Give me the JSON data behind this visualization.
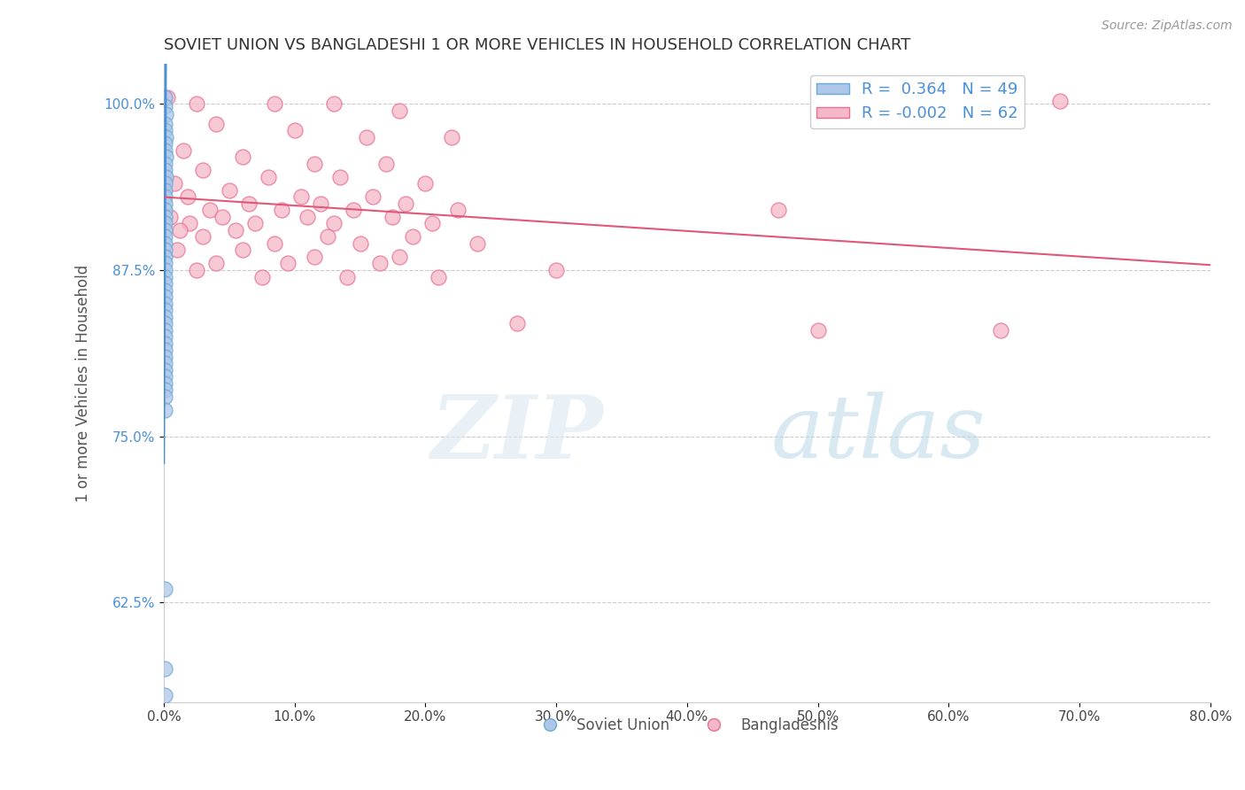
{
  "title": "SOVIET UNION VS BANGLADESHI 1 OR MORE VEHICLES IN HOUSEHOLD CORRELATION CHART",
  "source_text": "Source: ZipAtlas.com",
  "xlabel": "",
  "ylabel": "1 or more Vehicles in Household",
  "xmin": 0.0,
  "xmax": 80.0,
  "ymin": 55.0,
  "ymax": 103.0,
  "yticks": [
    62.5,
    75.0,
    87.5,
    100.0
  ],
  "xticks": [
    0.0,
    10.0,
    20.0,
    30.0,
    40.0,
    50.0,
    60.0,
    70.0,
    80.0
  ],
  "soviet_R": 0.364,
  "soviet_N": 49,
  "bangla_R": -0.002,
  "bangla_N": 62,
  "soviet_color": "#aec6e8",
  "bangla_color": "#f5b8c8",
  "soviet_edge_color": "#6aaad4",
  "bangla_edge_color": "#e87090",
  "soviet_line_color": "#4a90d9",
  "bangla_line_color": "#e05878",
  "watermark_zip": "ZIP",
  "watermark_atlas": "atlas",
  "soviet_points": [
    [
      0.05,
      100.5
    ],
    [
      0.08,
      99.8
    ],
    [
      0.12,
      99.2
    ],
    [
      0.06,
      98.5
    ],
    [
      0.1,
      98.0
    ],
    [
      0.14,
      97.5
    ],
    [
      0.07,
      97.0
    ],
    [
      0.09,
      96.5
    ],
    [
      0.11,
      96.0
    ],
    [
      0.06,
      95.5
    ],
    [
      0.08,
      95.0
    ],
    [
      0.12,
      94.5
    ],
    [
      0.05,
      94.0
    ],
    [
      0.07,
      93.5
    ],
    [
      0.1,
      93.0
    ],
    [
      0.06,
      92.5
    ],
    [
      0.08,
      92.0
    ],
    [
      0.05,
      91.5
    ],
    [
      0.07,
      91.0
    ],
    [
      0.09,
      90.5
    ],
    [
      0.06,
      90.0
    ],
    [
      0.08,
      89.5
    ],
    [
      0.05,
      89.0
    ],
    [
      0.07,
      88.5
    ],
    [
      0.09,
      88.0
    ],
    [
      0.06,
      87.5
    ],
    [
      0.05,
      87.0
    ],
    [
      0.07,
      86.5
    ],
    [
      0.06,
      86.0
    ],
    [
      0.05,
      85.5
    ],
    [
      0.07,
      85.0
    ],
    [
      0.06,
      84.5
    ],
    [
      0.05,
      84.0
    ],
    [
      0.07,
      83.5
    ],
    [
      0.06,
      83.0
    ],
    [
      0.05,
      82.5
    ],
    [
      0.06,
      82.0
    ],
    [
      0.05,
      81.5
    ],
    [
      0.06,
      81.0
    ],
    [
      0.05,
      80.5
    ],
    [
      0.06,
      80.0
    ],
    [
      0.05,
      79.5
    ],
    [
      0.06,
      79.0
    ],
    [
      0.05,
      78.5
    ],
    [
      0.06,
      78.0
    ],
    [
      0.07,
      77.0
    ],
    [
      0.06,
      63.5
    ],
    [
      0.05,
      57.5
    ],
    [
      0.07,
      55.5
    ]
  ],
  "bangla_points": [
    [
      0.3,
      100.5
    ],
    [
      2.5,
      100.0
    ],
    [
      8.5,
      100.0
    ],
    [
      13.0,
      100.0
    ],
    [
      18.0,
      99.5
    ],
    [
      4.0,
      98.5
    ],
    [
      10.0,
      98.0
    ],
    [
      15.5,
      97.5
    ],
    [
      22.0,
      97.5
    ],
    [
      1.5,
      96.5
    ],
    [
      6.0,
      96.0
    ],
    [
      11.5,
      95.5
    ],
    [
      17.0,
      95.5
    ],
    [
      3.0,
      95.0
    ],
    [
      8.0,
      94.5
    ],
    [
      13.5,
      94.5
    ],
    [
      20.0,
      94.0
    ],
    [
      0.8,
      94.0
    ],
    [
      5.0,
      93.5
    ],
    [
      10.5,
      93.0
    ],
    [
      16.0,
      93.0
    ],
    [
      1.8,
      93.0
    ],
    [
      6.5,
      92.5
    ],
    [
      12.0,
      92.5
    ],
    [
      18.5,
      92.5
    ],
    [
      3.5,
      92.0
    ],
    [
      9.0,
      92.0
    ],
    [
      14.5,
      92.0
    ],
    [
      22.5,
      92.0
    ],
    [
      0.5,
      91.5
    ],
    [
      4.5,
      91.5
    ],
    [
      11.0,
      91.5
    ],
    [
      17.5,
      91.5
    ],
    [
      2.0,
      91.0
    ],
    [
      7.0,
      91.0
    ],
    [
      13.0,
      91.0
    ],
    [
      20.5,
      91.0
    ],
    [
      1.2,
      90.5
    ],
    [
      5.5,
      90.5
    ],
    [
      12.5,
      90.0
    ],
    [
      19.0,
      90.0
    ],
    [
      3.0,
      90.0
    ],
    [
      8.5,
      89.5
    ],
    [
      15.0,
      89.5
    ],
    [
      24.0,
      89.5
    ],
    [
      1.0,
      89.0
    ],
    [
      6.0,
      89.0
    ],
    [
      11.5,
      88.5
    ],
    [
      18.0,
      88.5
    ],
    [
      4.0,
      88.0
    ],
    [
      9.5,
      88.0
    ],
    [
      16.5,
      88.0
    ],
    [
      2.5,
      87.5
    ],
    [
      7.5,
      87.0
    ],
    [
      14.0,
      87.0
    ],
    [
      21.0,
      87.0
    ],
    [
      30.0,
      87.5
    ],
    [
      47.0,
      92.0
    ],
    [
      68.5,
      100.2
    ],
    [
      50.0,
      83.0
    ],
    [
      64.0,
      83.0
    ],
    [
      27.0,
      83.5
    ]
  ]
}
